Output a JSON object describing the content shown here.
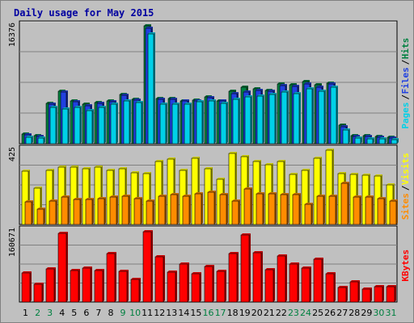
{
  "chart_data": {
    "type": "bar",
    "title": "Daily usage for May 2015",
    "days": [
      "1",
      "2",
      "3",
      "4",
      "5",
      "6",
      "7",
      "8",
      "9",
      "10",
      "11",
      "12",
      "13",
      "14",
      "15",
      "16",
      "17",
      "18",
      "19",
      "20",
      "21",
      "22",
      "23",
      "24",
      "25",
      "26",
      "27",
      "28",
      "29",
      "30",
      "31"
    ],
    "weekend_days": [
      "2",
      "3",
      "9",
      "10",
      "16",
      "17",
      "23",
      "24",
      "30",
      "31"
    ],
    "panels": [
      {
        "id": "pages-files-hits",
        "ymax": 16376,
        "ymax_label": "16376",
        "legend": [
          "Pages",
          "/",
          "Files",
          "/",
          "Hits"
        ],
        "series": [
          {
            "name": "Hits",
            "color": "#008040",
            "values": [
              1300,
              1100,
              5600,
              7300,
              5900,
              5500,
              5700,
              6000,
              6800,
              6200,
              16376,
              6300,
              6300,
              6000,
              6100,
              6500,
              6000,
              7300,
              7800,
              7600,
              7400,
              8300,
              8200,
              8600,
              8200,
              8400,
              2600,
              1100,
              1100,
              1000,
              900
            ]
          },
          {
            "name": "Files",
            "color": "#2040e0",
            "values": [
              1200,
              1000,
              5500,
              7200,
              5800,
              5300,
              5600,
              5800,
              6700,
              6100,
              16000,
              6200,
              6200,
              5900,
              6000,
              6400,
              5900,
              6900,
              7200,
              7400,
              7300,
              8100,
              8000,
              8300,
              7800,
              8300,
              2400,
              1000,
              1000,
              900,
              800
            ]
          },
          {
            "name": "Pages",
            "color": "#00d0e8",
            "values": [
              900,
              800,
              5100,
              4800,
              5100,
              4600,
              5000,
              5500,
              5900,
              5700,
              15200,
              5500,
              5500,
              5500,
              5800,
              6000,
              5600,
              6200,
              6500,
              6600,
              6800,
              7200,
              7000,
              7600,
              7300,
              7900,
              1900,
              800,
              700,
              700,
              600
            ]
          }
        ]
      },
      {
        "id": "sites-visits",
        "ymax": 425,
        "ymax_label": "425",
        "legend": [
          "Sites",
          "/",
          "Visits"
        ],
        "series": [
          {
            "name": "Visits",
            "color": "#ffff00",
            "values": [
              305,
              210,
              310,
              330,
              330,
              320,
              330,
              310,
              320,
              295,
              290,
              360,
              375,
              310,
              380,
              320,
              260,
              405,
              390,
              360,
              340,
              360,
              285,
              310,
              380,
              425,
              290,
              285,
              280,
              275,
              225
            ]
          },
          {
            "name": "Sites",
            "color": "#ff8c00",
            "values": [
              130,
              90,
              135,
              155,
              145,
              145,
              150,
              155,
              160,
              150,
              135,
              160,
              170,
              160,
              175,
              185,
              170,
              135,
              205,
              175,
              175,
              170,
              170,
              115,
              160,
              160,
              235,
              155,
              155,
              150,
              135
            ]
          }
        ]
      },
      {
        "id": "kbytes",
        "ymax": 160671,
        "ymax_label": "160671",
        "legend": [
          "KBytes"
        ],
        "series": [
          {
            "name": "KBytes",
            "color": "#ff0000",
            "values": [
              65000,
              40000,
              75000,
              155000,
              71000,
              76000,
              72000,
              110000,
              70000,
              51000,
              158000,
              103000,
              67000,
              85000,
              64000,
              80000,
              70000,
              110000,
              152000,
              112000,
              73000,
              104000,
              86000,
              77000,
              96000,
              64000,
              33000,
              46000,
              30000,
              34000,
              34000
            ]
          }
        ]
      }
    ]
  }
}
